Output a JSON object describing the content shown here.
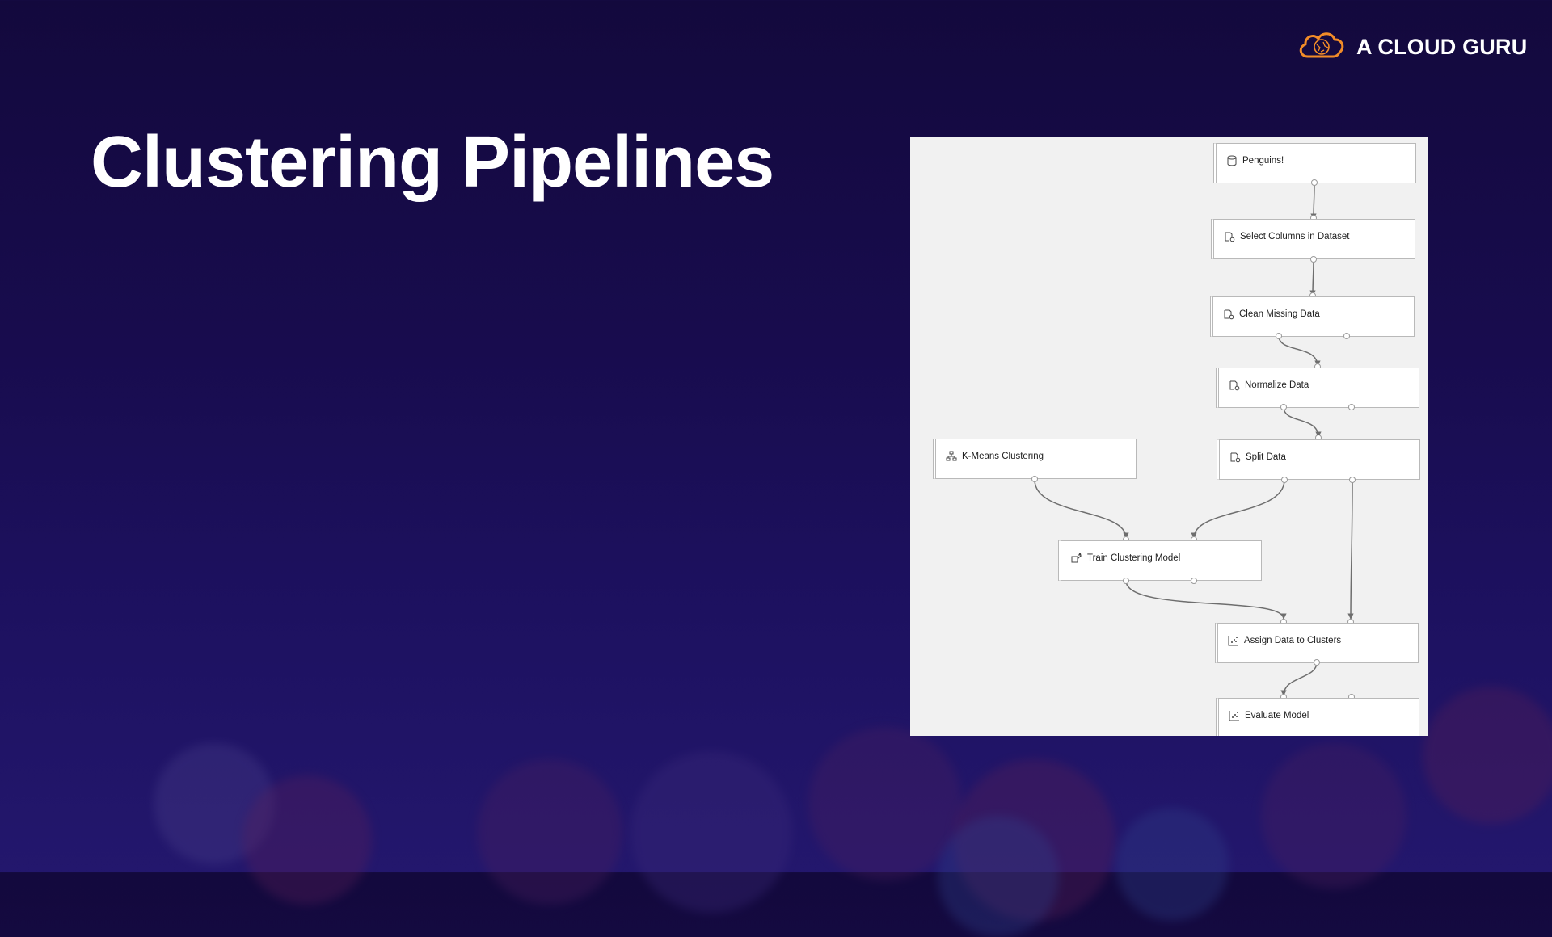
{
  "brand": {
    "name": "A CLOUD GURU",
    "logo_icon": "cloud-guru-logo-icon",
    "accent": "#f28c28"
  },
  "slide": {
    "title": "Clustering Pipelines"
  },
  "pipeline": {
    "nodes": [
      {
        "id": "penguins",
        "label": "Penguins!",
        "icon": "dataset-icon"
      },
      {
        "id": "select-columns",
        "label": "Select Columns in Dataset",
        "icon": "data-transform-icon"
      },
      {
        "id": "clean-missing",
        "label": "Clean Missing Data",
        "icon": "data-transform-icon"
      },
      {
        "id": "normalize",
        "label": "Normalize Data",
        "icon": "data-transform-icon"
      },
      {
        "id": "kmeans",
        "label": "K-Means Clustering",
        "icon": "clustering-icon"
      },
      {
        "id": "split",
        "label": "Split Data",
        "icon": "data-transform-icon"
      },
      {
        "id": "train",
        "label": "Train Clustering Model",
        "icon": "train-model-icon"
      },
      {
        "id": "assign",
        "label": "Assign Data to Clusters",
        "icon": "scatter-chart-icon"
      },
      {
        "id": "evaluate",
        "label": "Evaluate Model",
        "icon": "scatter-chart-icon"
      }
    ]
  }
}
